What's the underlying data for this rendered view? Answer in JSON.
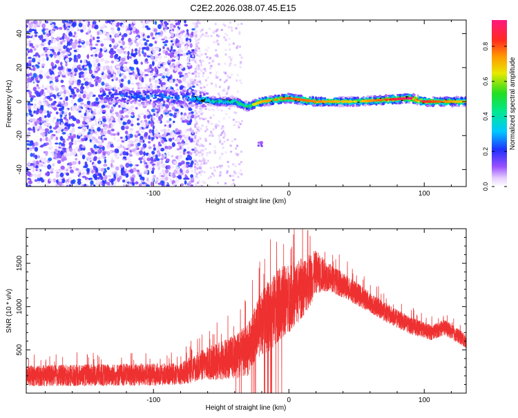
{
  "page_title": "C2E2.2026.038.07.45.E15",
  "colors": {
    "snr_line": "#ee3030",
    "spectrogram_dots": "#7a22e8",
    "ridge_core": "#ff2a55",
    "ridge_green": "#22dd44"
  },
  "chart_data": [
    {
      "type": "heatmap",
      "xlabel": "Height of straight line (km)",
      "ylabel": "Frequency (Hz)",
      "xlim": [
        -194,
        131
      ],
      "ylim": [
        -50,
        48
      ],
      "xticks": [
        -100,
        0,
        100
      ],
      "yticks": [
        -40,
        -20,
        0,
        20,
        40
      ],
      "colorbar": {
        "label": "Normalized spectral amplitude",
        "range": [
          0.0,
          0.95
        ],
        "ticks": [
          0.0,
          0.2,
          0.4,
          0.6,
          0.8
        ],
        "tick_labels": [
          "0.0",
          "0.2",
          "0.4",
          "0.6",
          "0.8"
        ],
        "colormap": "rainbow (purple → blue → cyan → green → yellow → orange → red)"
      },
      "features": {
        "noise_region": {
          "x_range": [
            -194,
            -70
          ],
          "freq_range": [
            -50,
            48
          ],
          "amplitude": 0.15
        },
        "sparse_region": {
          "x_range": [
            -70,
            -35
          ],
          "amplitude": 0.05
        },
        "ridge": {
          "points": [
            {
              "x": -140,
              "freq": 4,
              "amplitude": 0.25
            },
            {
              "x": -70,
              "freq": 2,
              "amplitude": 0.35
            },
            {
              "x": -55,
              "freq": 0,
              "amplitude": 0.45
            },
            {
              "x": -40,
              "freq": 0,
              "amplitude": 0.5
            },
            {
              "x": -30,
              "freq": -3,
              "amplitude": 0.55
            },
            {
              "x": -20,
              "freq": 0,
              "amplitude": 0.7
            },
            {
              "x": 0,
              "freq": 2,
              "amplitude": 0.8
            },
            {
              "x": 20,
              "freq": 0,
              "amplitude": 0.75
            },
            {
              "x": 50,
              "freq": 0,
              "amplitude": 0.65
            },
            {
              "x": 90,
              "freq": 2,
              "amplitude": 0.95
            },
            {
              "x": 100,
              "freq": 0,
              "amplitude": 0.85
            },
            {
              "x": 131,
              "freq": 0,
              "amplitude": 0.65
            }
          ]
        },
        "isolated_blob": {
          "x": -22,
          "freq": -23,
          "amplitude": 0.1
        }
      }
    },
    {
      "type": "line",
      "xlabel": "Height of straight line (km)",
      "ylabel": "SNR (10 * v/v)",
      "xlim": [
        -194,
        131
      ],
      "ylim": [
        0,
        1900
      ],
      "xticks": [
        -100,
        0,
        100
      ],
      "yticks": [
        500,
        1000,
        1500
      ],
      "series": [
        {
          "envelope": [
            {
              "x": -194,
              "mean": 200,
              "spread": 120
            },
            {
              "x": -130,
              "mean": 210,
              "spread": 130
            },
            {
              "x": -80,
              "mean": 220,
              "spread": 130
            },
            {
              "x": -65,
              "mean": 320,
              "spread": 180
            },
            {
              "x": -50,
              "mean": 380,
              "spread": 230
            },
            {
              "x": -40,
              "mean": 420,
              "spread": 260
            },
            {
              "x": -30,
              "mean": 500,
              "spread": 300
            },
            {
              "x": -25,
              "mean": 700,
              "spread": 320
            },
            {
              "x": -15,
              "mean": 900,
              "spread": 420
            },
            {
              "x": -5,
              "mean": 1050,
              "spread": 420
            },
            {
              "x": 5,
              "mean": 1150,
              "spread": 380
            },
            {
              "x": 15,
              "mean": 1300,
              "spread": 320
            },
            {
              "x": 20,
              "mean": 1400,
              "spread": 250
            },
            {
              "x": 30,
              "mean": 1340,
              "spread": 160
            },
            {
              "x": 45,
              "mean": 1200,
              "spread": 140
            },
            {
              "x": 60,
              "mean": 1050,
              "spread": 120
            },
            {
              "x": 75,
              "mean": 900,
              "spread": 110
            },
            {
              "x": 90,
              "mean": 780,
              "spread": 100
            },
            {
              "x": 105,
              "mean": 700,
              "spread": 90
            },
            {
              "x": 115,
              "mean": 760,
              "spread": 90
            },
            {
              "x": 131,
              "mean": 600,
              "spread": 80
            }
          ],
          "max_value": 1880,
          "max_at_x": 14
        }
      ]
    }
  ]
}
